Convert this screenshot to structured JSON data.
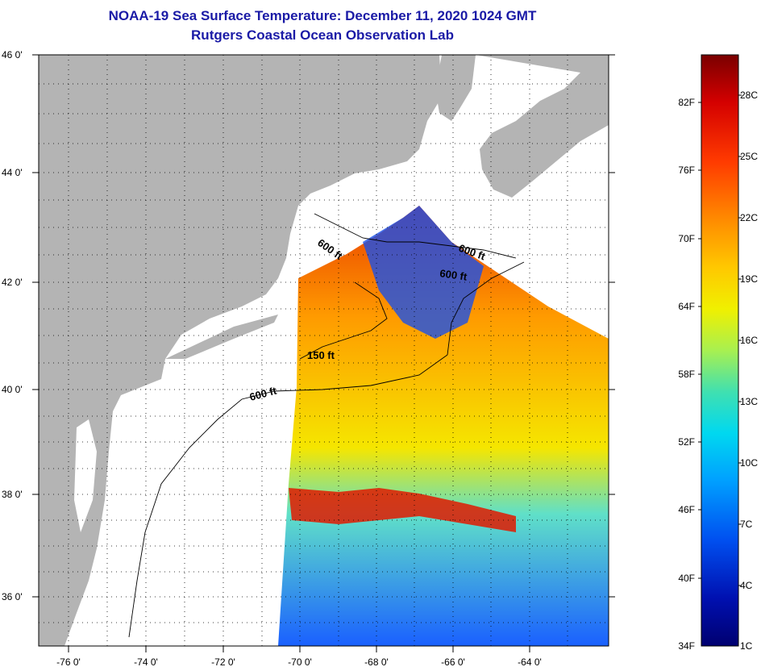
{
  "header": {
    "title": "NOAA-19 Sea Surface Temperature:  December 11, 2020 1024 GMT",
    "subtitle": "Rutgers Coastal Ocean Observation Lab"
  },
  "map": {
    "lat_labels": [
      "46 0'",
      "44 0'",
      "42 0'",
      "40 0'",
      "38 0'",
      "36 0'"
    ],
    "lon_labels": [
      "-76 0'",
      "-74 0'",
      "-72 0'",
      "-70 0'",
      "-68 0'",
      "-66 0'",
      "-64 0'"
    ],
    "contour_labels": [
      "600 ft",
      "600 ft",
      "600 ft",
      "150 ft",
      "600 ft"
    ],
    "colors": {
      "land": "#b4b4b4",
      "coast_white": "#ffffff",
      "frame": "#000000"
    }
  },
  "colorbar": {
    "fahrenheit_labels": [
      "82F",
      "76F",
      "70F",
      "64F",
      "58F",
      "52F",
      "46F",
      "40F",
      "34F"
    ],
    "celsius_labels": [
      "28C",
      "25C",
      "22C",
      "19C",
      "16C",
      "13C",
      "10C",
      "7C",
      "4C",
      "1C"
    ],
    "gradient_top_to_bottom": [
      "#7a0000",
      "#d40000",
      "#ff3a00",
      "#ff8c00",
      "#ffc800",
      "#f0f000",
      "#a8f050",
      "#40e0b0",
      "#00d8f0",
      "#00a0ff",
      "#0050f0",
      "#0010b0",
      "#000070"
    ]
  }
}
